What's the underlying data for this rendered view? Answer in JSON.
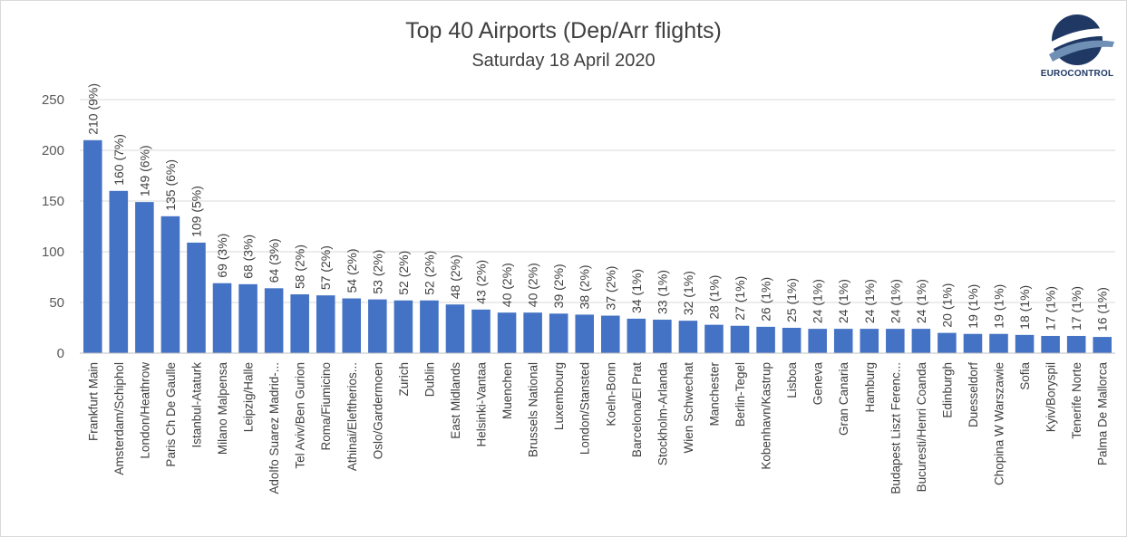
{
  "brand": {
    "logo_text": "EUROCONTROL",
    "colors": {
      "logo_dark": "#1f3864",
      "logo_light": "#6f8fb5"
    }
  },
  "chart_data": {
    "type": "bar",
    "title": "Top 40 Airports (Dep/Arr flights)",
    "subtitle": "Saturday 18 April 2020",
    "xlabel": "",
    "ylabel": "",
    "ylim": [
      0,
      250
    ],
    "yticks": [
      0,
      50,
      100,
      150,
      200,
      250
    ],
    "grid": true,
    "bar_color": "#4472c4",
    "categories": [
      "Frankfurt Main",
      "Amsterdam/Schiphol",
      "London/Heathrow",
      "Paris Ch De Gaulle",
      "Istanbul-Ataturk",
      "Milano Malpensa",
      "Leipzig/Halle",
      "Adolfo Suarez Madrid-...",
      "Tel Aviv/Ben Gurion",
      "Roma/Fiumicino",
      "Athinai/Eleftherios...",
      "Oslo/Gardermoen",
      "Zurich",
      "Dublin",
      "East Midlands",
      "Helsinki-Vantaa",
      "Muenchen",
      "Brussels National",
      "Luxembourg",
      "London/Stansted",
      "Koeln-Bonn",
      "Barcelona/El Prat",
      "Stockholm-Arlanda",
      "Wien Schwechat",
      "Manchester",
      "Berlin-Tegel",
      "Kobenhavn/Kastrup",
      "Lisboa",
      "Geneva",
      "Gran Canaria",
      "Hamburg",
      "Budapest Liszt Ferenc...",
      "Bucuresti/Henri Coanda",
      "Edinburgh",
      "Duesseldorf",
      "Chopina W Warszawie",
      "Sofia",
      "Kyiv/Boryspil",
      "Tenerife Norte",
      "Palma De Mallorca"
    ],
    "values": [
      210,
      160,
      149,
      135,
      109,
      69,
      68,
      64,
      58,
      57,
      54,
      53,
      52,
      52,
      48,
      43,
      40,
      40,
      39,
      38,
      37,
      34,
      33,
      32,
      28,
      27,
      26,
      25,
      24,
      24,
      24,
      24,
      24,
      20,
      19,
      19,
      18,
      17,
      17,
      16
    ],
    "data_labels": [
      "210 (9%)",
      "160 (7%)",
      "149 (6%)",
      "135 (6%)",
      "109 (5%)",
      "69 (3%)",
      "68 (3%)",
      "64 (3%)",
      "58 (2%)",
      "57 (2%)",
      "54 (2%)",
      "53 (2%)",
      "52 (2%)",
      "52 (2%)",
      "48 (2%)",
      "43 (2%)",
      "40 (2%)",
      "40 (2%)",
      "39 (2%)",
      "38 (2%)",
      "37 (2%)",
      "34 (1%)",
      "33 (1%)",
      "32 (1%)",
      "28 (1%)",
      "27 (1%)",
      "26 (1%)",
      "25 (1%)",
      "24 (1%)",
      "24 (1%)",
      "24 (1%)",
      "24 (1%)",
      "24 (1%)",
      "20 (1%)",
      "19 (1%)",
      "19 (1%)",
      "18 (1%)",
      "17 (1%)",
      "17 (1%)",
      "16 (1%)"
    ]
  }
}
